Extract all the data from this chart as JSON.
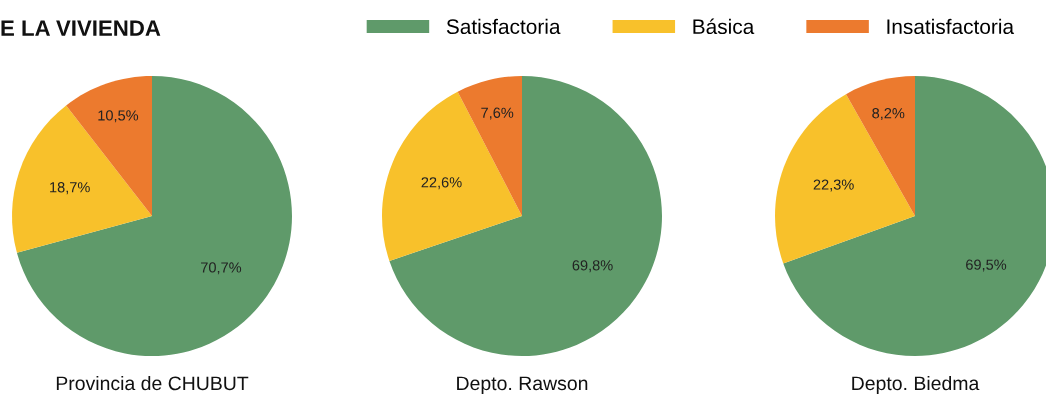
{
  "chart_data": [
    {
      "type": "pie",
      "title": "E LA VIVIENDA",
      "xlabel": "Provincia de CHUBUT",
      "categories": [
        "Satisfactoria",
        "Básica",
        "Insatisfactoria"
      ],
      "values": [
        70.7,
        18.7,
        10.5
      ],
      "value_labels": [
        "70,7%",
        "18,7%",
        "10,5%"
      ],
      "colors": [
        "#5f9a6a",
        "#f8c12b",
        "#ec7a2e"
      ],
      "legend": "top"
    },
    {
      "type": "pie",
      "xlabel": "Depto. Rawson",
      "categories": [
        null,
        null,
        null
      ],
      "values": [
        69.8,
        22.6,
        7.6
      ],
      "value_labels": [
        "69,8%",
        "22,6%",
        "7,6%"
      ],
      "colors": [
        "#5f9a6a",
        "#f8c12b",
        "#ec7a2e"
      ]
    },
    {
      "type": "pie",
      "xlabel": "Depto. Biedma",
      "categories": [
        null,
        null,
        null
      ],
      "values": [
        69.5,
        22.3,
        8.2
      ],
      "value_labels": [
        "69,5%",
        "22,3%",
        "8,2%"
      ],
      "colors": [
        "#5f9a6a",
        "#f8c12b",
        "#ec7a2e"
      ]
    }
  ]
}
